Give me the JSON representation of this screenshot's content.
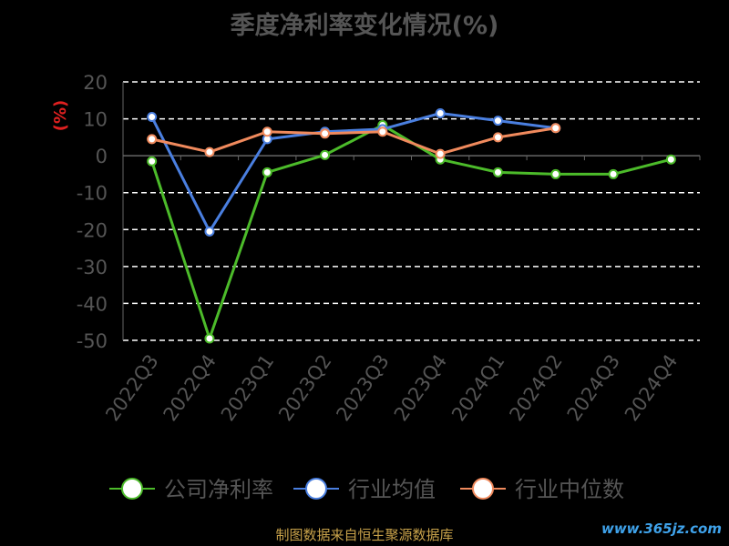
{
  "title": "季度净利率变化情况(%)",
  "footer": "制图数据来自恒生聚源数据库",
  "watermark": "www.365jz.com",
  "chart_data": {
    "type": "line",
    "ylabel": "(%)",
    "ylim": [
      -50,
      20
    ],
    "yticks": [
      20,
      10,
      0,
      -10,
      -20,
      -30,
      -40,
      -50
    ],
    "categories": [
      "2022Q3",
      "2022Q4",
      "2023Q1",
      "2023Q2",
      "2023Q3",
      "2023Q4",
      "2024Q1",
      "2024Q2",
      "2024Q3",
      "2024Q4"
    ],
    "grid": true,
    "legend_position": "bottom",
    "series": [
      {
        "name": "公司净利率",
        "color": "#4cbb2a",
        "values": [
          -1.5,
          -49.5,
          -4.5,
          0.2,
          8.3,
          -1.0,
          -4.5,
          -5.0,
          -5.0,
          -1.0
        ]
      },
      {
        "name": "行业均值",
        "color": "#4a7fe0",
        "values": [
          10.5,
          -20.5,
          4.5,
          6.5,
          7.2,
          11.5,
          9.5,
          7.5,
          null,
          null
        ]
      },
      {
        "name": "行业中位数",
        "color": "#f08a5d",
        "values": [
          4.5,
          1.0,
          6.5,
          6.0,
          6.5,
          0.5,
          5.0,
          7.5,
          null,
          null
        ]
      }
    ]
  }
}
